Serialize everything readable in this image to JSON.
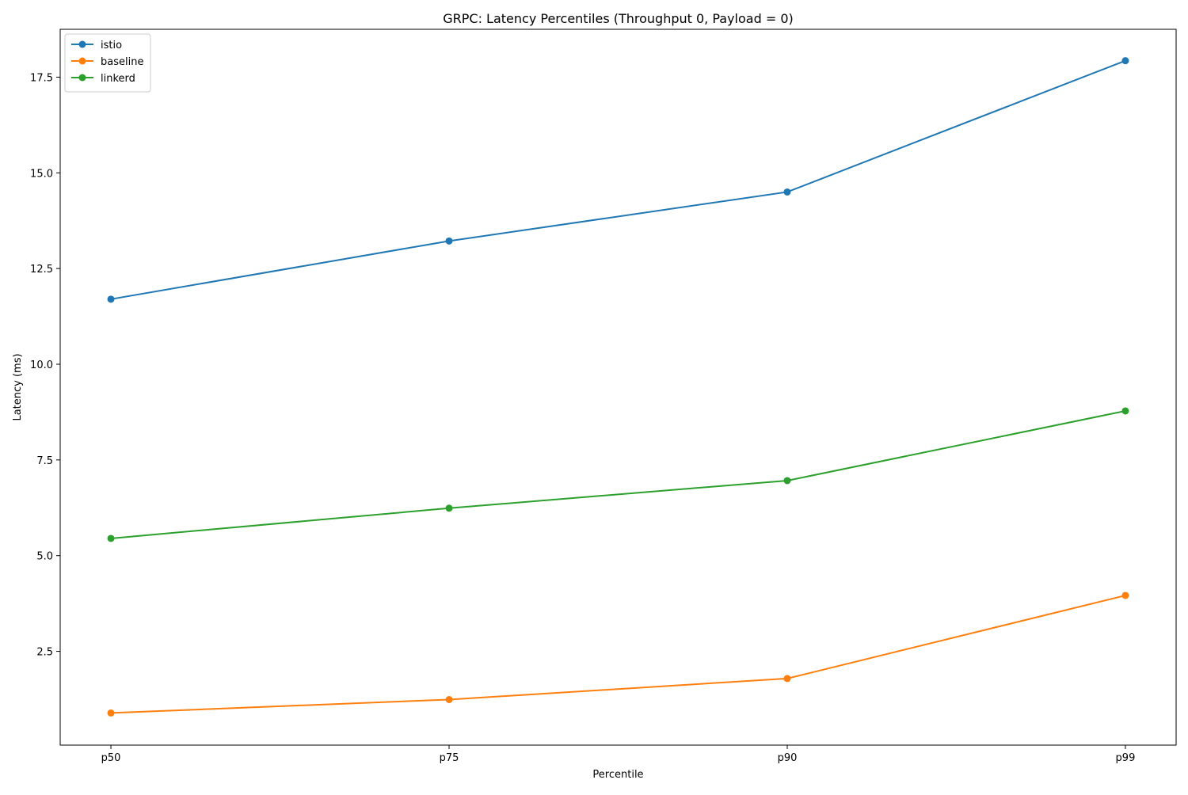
{
  "chart_data": {
    "type": "line",
    "title": "GRPC: Latency Percentiles (Throughput 0, Payload = 0)",
    "xlabel": "Percentile",
    "ylabel": "Latency (ms)",
    "categories": [
      "p50",
      "p75",
      "p90",
      "p99"
    ],
    "ylim": [
      0.05,
      18.75
    ],
    "yticks": [
      2.5,
      5.0,
      7.5,
      10.0,
      12.5,
      15.0,
      17.5
    ],
    "ytick_labels": [
      "2.5",
      "5.0",
      "7.5",
      "10.0",
      "12.5",
      "15.0",
      "17.5"
    ],
    "grid": false,
    "legend_position": "top-left",
    "markers": true,
    "series": [
      {
        "name": "istio",
        "color": "#1f77b4",
        "values": [
          11.7,
          13.22,
          14.5,
          17.93
        ]
      },
      {
        "name": "baseline",
        "color": "#ff7f0e",
        "values": [
          0.89,
          1.24,
          1.79,
          3.96
        ]
      },
      {
        "name": "linkerd",
        "color": "#2ca02c",
        "values": [
          5.45,
          6.24,
          6.96,
          8.78
        ]
      }
    ]
  }
}
